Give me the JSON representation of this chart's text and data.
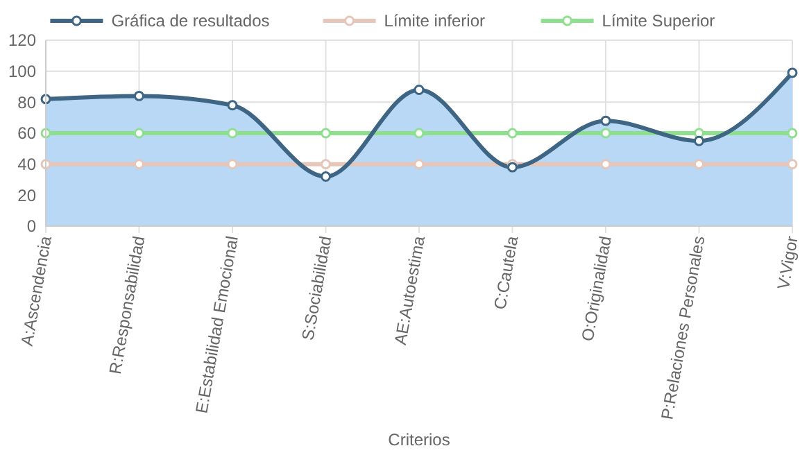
{
  "chart_data": {
    "type": "line",
    "xlabel": "Criterios",
    "categories": [
      "A:Ascendencia",
      "R:Responsabilidad",
      "E:Estabilidad Emocional",
      "S:Sociabilidad",
      "AE:Autoestima",
      "C:Cautela",
      "O:Originalidad",
      "P:Relaciones Personales",
      "V:Vigor"
    ],
    "series": [
      {
        "name": "Gráfica de resultados",
        "type": "area",
        "color": "#3e6584",
        "values": [
          82,
          84,
          78,
          32,
          88,
          38,
          68,
          55,
          99
        ]
      },
      {
        "name": "Límite inferior",
        "type": "line",
        "color": "#e5c6b8",
        "values": [
          40,
          40,
          40,
          40,
          40,
          40,
          40,
          40,
          40
        ]
      },
      {
        "name": "Límite Superior",
        "type": "line",
        "color": "#8ee08e",
        "values": [
          60,
          60,
          60,
          60,
          60,
          60,
          60,
          60,
          60
        ]
      }
    ],
    "ylim": [
      0,
      120
    ],
    "yticks": [
      0,
      20,
      40,
      60,
      80,
      100,
      120
    ],
    "grid": true,
    "legend": "top",
    "marker": "circle"
  }
}
